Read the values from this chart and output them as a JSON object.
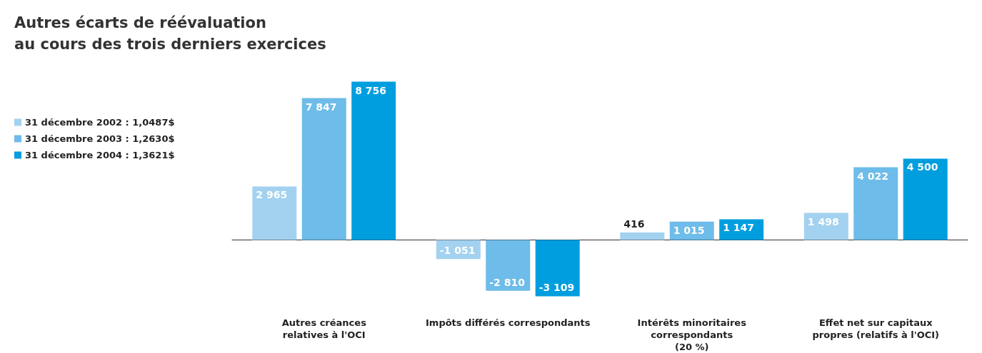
{
  "chart_data": {
    "type": "bar",
    "title": "Autres écarts de réévaluation\nau cours des trois derniers exercices",
    "categories": [
      "Autres créances\nrelatives à l'OCI",
      "Impôts différés correspondants",
      "Intérêts minoritaires\ncorrespondants\n(20 %)",
      "Effet net sur capitaux\npropres (relatifs à l'OCI)"
    ],
    "series": [
      {
        "name": "31 décembre 2002 : 1,0487$",
        "color": "#a3d2f0",
        "values": [
          2965,
          -1051,
          416,
          1498
        ]
      },
      {
        "name": "31 décembre 2003 : 1,2630$",
        "color": "#6ebce9",
        "values": [
          7847,
          -2810,
          1015,
          4022
        ]
      },
      {
        "name": "31 décembre 2004 : 1,3621$",
        "color": "#009edf",
        "values": [
          8756,
          -3109,
          1147,
          4500
        ]
      }
    ],
    "data_labels": true,
    "legend": "left"
  }
}
